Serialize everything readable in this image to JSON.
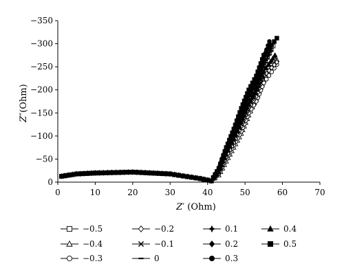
{
  "chart_data": {
    "type": "scatter",
    "xlabel_main": "Z",
    "xlabel_prime": "′",
    "xlabel_unit": " (Ohm)",
    "ylabel_main": "Z",
    "ylabel_prime": "″",
    "ylabel_unit": "(Ohm)",
    "xlim": [
      0,
      70
    ],
    "ylim": [
      0,
      -350
    ],
    "x_ticks": [
      0,
      10,
      20,
      30,
      40,
      50,
      60,
      70
    ],
    "y_ticks": [
      0,
      -50,
      -100,
      -150,
      -200,
      -250,
      -300,
      -350
    ],
    "x_tick_labels": [
      "0",
      "10",
      "20",
      "30",
      "40",
      "50",
      "60",
      "70"
    ],
    "y_tick_labels": [
      "0",
      "−50",
      "−100",
      "−150",
      "−200",
      "−250",
      "−300",
      "−350"
    ],
    "grid": false,
    "legend_placement": "bottom",
    "series": [
      {
        "name": "−0.5",
        "marker": "square-open",
        "x": [
          1,
          5,
          10,
          20,
          30,
          38,
          41,
          43,
          45,
          47,
          49,
          51,
          53,
          55,
          57.5
        ],
        "y": [
          -13,
          -18,
          -20,
          -22,
          -18,
          -8,
          -3,
          -25,
          -75,
          -90,
          -135,
          -175,
          -195,
          -255,
          -295
        ]
      },
      {
        "name": "−0.4",
        "marker": "triangle-open",
        "x": [
          1,
          5,
          10,
          20,
          30,
          38,
          41,
          43,
          45,
          47,
          49,
          51,
          53,
          55,
          58.5
        ],
        "y": [
          -12,
          -17,
          -19,
          -21,
          -17,
          -7,
          -2,
          -15,
          -45,
          -75,
          -105,
          -145,
          -180,
          -220,
          -265
        ]
      },
      {
        "name": "−0.3",
        "marker": "circle-open",
        "x": [
          1,
          5,
          10,
          20,
          30,
          38,
          41,
          43,
          45,
          47,
          49,
          51,
          53,
          55,
          58.5
        ],
        "y": [
          -12,
          -17,
          -19,
          -21,
          -17,
          -7,
          -2,
          -18,
          -50,
          -80,
          -110,
          -150,
          -175,
          -215,
          -255
        ]
      },
      {
        "name": "−0.2",
        "marker": "diamond-open",
        "x": [
          1,
          5,
          10,
          20,
          30,
          38,
          41,
          43,
          45,
          47,
          49,
          51,
          53,
          55,
          58.5
        ],
        "y": [
          -13,
          -18,
          -20,
          -22,
          -18,
          -8,
          -3,
          -20,
          -55,
          -85,
          -120,
          -160,
          -185,
          -230,
          -260
        ]
      },
      {
        "name": "−0.1",
        "marker": "x",
        "x": [
          1,
          5,
          10,
          20,
          30,
          38,
          41,
          43,
          45,
          47,
          49,
          51,
          53,
          55,
          58
        ],
        "y": [
          -13,
          -18,
          -20,
          -22,
          -18,
          -8,
          -3,
          -22,
          -60,
          -90,
          -125,
          -165,
          -195,
          -240,
          -270
        ]
      },
      {
        "name": "0",
        "marker": "dash",
        "x": [
          1,
          5,
          10,
          20,
          30,
          38,
          41,
          43,
          45,
          47,
          49,
          51,
          53,
          55,
          57
        ],
        "y": [
          -13,
          -18,
          -20,
          -22,
          -18,
          -8,
          -3,
          -25,
          -65,
          -100,
          -140,
          -180,
          -210,
          -250,
          -285
        ]
      },
      {
        "name": "0.1",
        "marker": "plus-filled",
        "x": [
          1,
          5,
          10,
          20,
          30,
          38,
          41,
          43,
          45,
          47,
          49,
          51,
          53,
          55,
          57
        ],
        "y": [
          -13,
          -18,
          -20,
          -22,
          -18,
          -8,
          -3,
          -25,
          -68,
          -105,
          -145,
          -185,
          -215,
          -255,
          -290
        ]
      },
      {
        "name": "0.2",
        "marker": "diamond-filled",
        "x": [
          1,
          5,
          10,
          20,
          30,
          38,
          41,
          43,
          45,
          47,
          49,
          51,
          53,
          55,
          56.5
        ],
        "y": [
          -13,
          -18,
          -20,
          -22,
          -18,
          -8,
          -3,
          -28,
          -70,
          -110,
          -150,
          -190,
          -220,
          -265,
          -300
        ]
      },
      {
        "name": "0.3",
        "marker": "circle-filled",
        "x": [
          1,
          5,
          10,
          20,
          30,
          38,
          41,
          43,
          45,
          47,
          49,
          51,
          53,
          55,
          56.5
        ],
        "y": [
          -13,
          -18,
          -20,
          -22,
          -18,
          -8,
          -3,
          -28,
          -72,
          -112,
          -155,
          -195,
          -225,
          -270,
          -305
        ]
      },
      {
        "name": "0.4",
        "marker": "triangle-filled",
        "x": [
          1,
          5,
          10,
          20,
          30,
          38,
          41,
          43,
          45,
          47,
          49,
          51,
          53,
          55,
          58
        ],
        "y": [
          -13,
          -18,
          -20,
          -22,
          -18,
          -8,
          -3,
          -22,
          -60,
          -95,
          -130,
          -170,
          -200,
          -240,
          -275
        ]
      },
      {
        "name": "0.5",
        "marker": "square-filled",
        "x": [
          1,
          5,
          10,
          20,
          30,
          38,
          41,
          43,
          45,
          47,
          49,
          51,
          53,
          55,
          58.5
        ],
        "y": [
          -13,
          -18,
          -20,
          -22,
          -18,
          -8,
          -3,
          -30,
          -75,
          -115,
          -160,
          -200,
          -230,
          -275,
          -312
        ]
      }
    ]
  }
}
